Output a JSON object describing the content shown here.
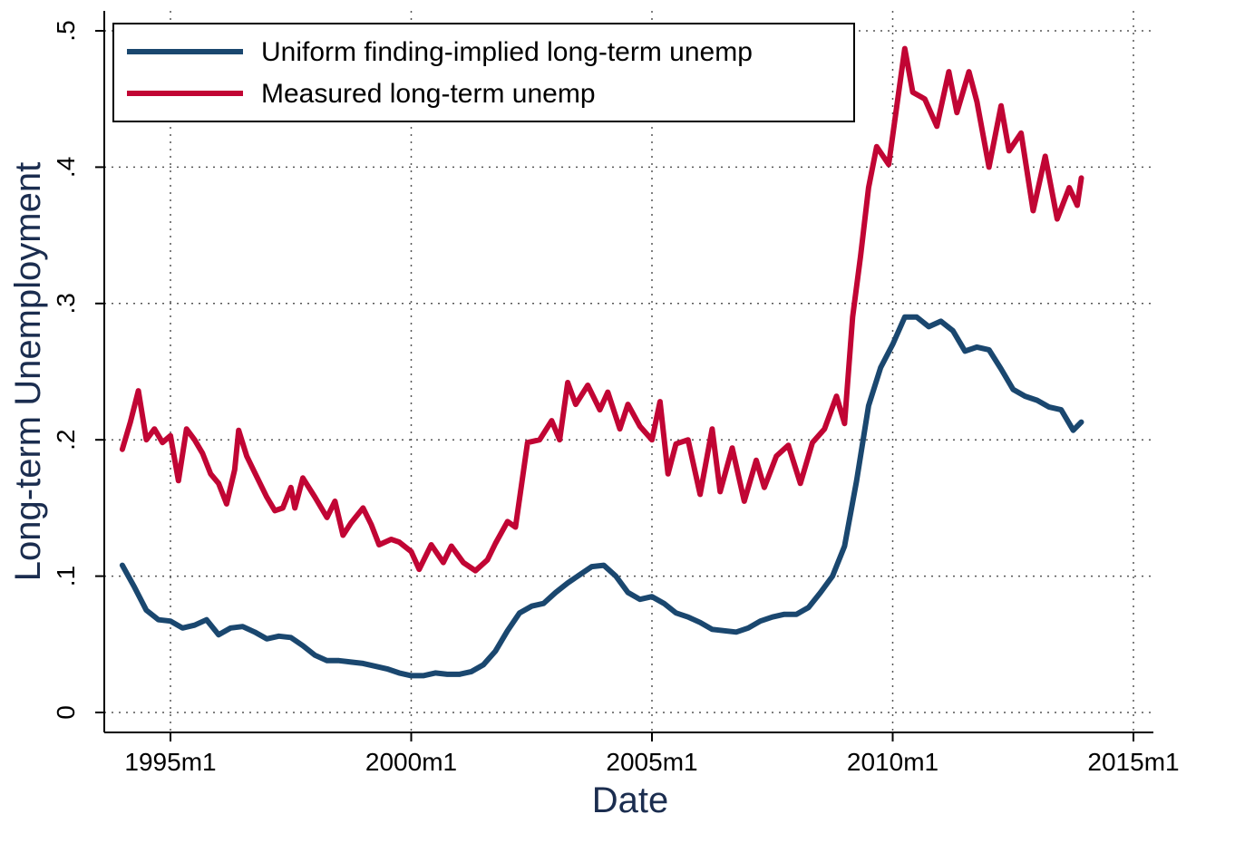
{
  "chart_data": {
    "type": "line",
    "title": "",
    "xlabel": "Date",
    "ylabel": "Long-term Unemployment",
    "x_ticks": [
      "1995m1",
      "2000m1",
      "2005m1",
      "2010m1",
      "2015m1"
    ],
    "y_ticks": [
      "0",
      ".1",
      ".2",
      ".3",
      ".4",
      ".5"
    ],
    "xlim": [
      "1994m1",
      "2015m1"
    ],
    "ylim": [
      0,
      0.5
    ],
    "grid": "dotted, both axes",
    "legend_position": "top-left",
    "colors": {
      "uniform": "#1a476f",
      "measured": "#c10534"
    },
    "series": [
      {
        "name": "Uniform finding-implied long-term unemp",
        "color": "#1a476f",
        "points": [
          [
            "1994m1",
            0.108
          ],
          [
            "1994m4",
            0.092
          ],
          [
            "1994m7",
            0.075
          ],
          [
            "1994m10",
            0.068
          ],
          [
            "1995m1",
            0.067
          ],
          [
            "1995m4",
            0.062
          ],
          [
            "1995m7",
            0.064
          ],
          [
            "1995m10",
            0.068
          ],
          [
            "1996m1",
            0.057
          ],
          [
            "1996m4",
            0.062
          ],
          [
            "1996m7",
            0.063
          ],
          [
            "1996m10",
            0.059
          ],
          [
            "1997m1",
            0.054
          ],
          [
            "1997m4",
            0.056
          ],
          [
            "1997m7",
            0.055
          ],
          [
            "1997m10",
            0.049
          ],
          [
            "1998m1",
            0.042
          ],
          [
            "1998m4",
            0.038
          ],
          [
            "1998m7",
            0.038
          ],
          [
            "1998m10",
            0.037
          ],
          [
            "1999m1",
            0.036
          ],
          [
            "1999m4",
            0.034
          ],
          [
            "1999m7",
            0.032
          ],
          [
            "1999m10",
            0.029
          ],
          [
            "2000m1",
            0.027
          ],
          [
            "2000m4",
            0.027
          ],
          [
            "2000m7",
            0.029
          ],
          [
            "2000m10",
            0.028
          ],
          [
            "2001m1",
            0.028
          ],
          [
            "2001m4",
            0.03
          ],
          [
            "2001m7",
            0.035
          ],
          [
            "2001m10",
            0.045
          ],
          [
            "2002m1",
            0.06
          ],
          [
            "2002m4",
            0.073
          ],
          [
            "2002m7",
            0.078
          ],
          [
            "2002m10",
            0.08
          ],
          [
            "2003m1",
            0.088
          ],
          [
            "2003m4",
            0.095
          ],
          [
            "2003m7",
            0.101
          ],
          [
            "2003m10",
            0.107
          ],
          [
            "2004m1",
            0.108
          ],
          [
            "2004m4",
            0.1
          ],
          [
            "2004m7",
            0.088
          ],
          [
            "2004m10",
            0.083
          ],
          [
            "2005m1",
            0.085
          ],
          [
            "2005m4",
            0.08
          ],
          [
            "2005m7",
            0.073
          ],
          [
            "2005m10",
            0.07
          ],
          [
            "2006m1",
            0.066
          ],
          [
            "2006m4",
            0.061
          ],
          [
            "2006m7",
            0.06
          ],
          [
            "2006m10",
            0.059
          ],
          [
            "2007m1",
            0.062
          ],
          [
            "2007m4",
            0.067
          ],
          [
            "2007m7",
            0.07
          ],
          [
            "2007m10",
            0.072
          ],
          [
            "2008m1",
            0.072
          ],
          [
            "2008m4",
            0.077
          ],
          [
            "2008m7",
            0.088
          ],
          [
            "2008m10",
            0.1
          ],
          [
            "2009m1",
            0.122
          ],
          [
            "2009m4",
            0.17
          ],
          [
            "2009m7",
            0.225
          ],
          [
            "2009m10",
            0.253
          ],
          [
            "2010m1",
            0.27
          ],
          [
            "2010m4",
            0.29
          ],
          [
            "2010m7",
            0.29
          ],
          [
            "2010m10",
            0.283
          ],
          [
            "2011m1",
            0.287
          ],
          [
            "2011m4",
            0.28
          ],
          [
            "2011m7",
            0.265
          ],
          [
            "2011m10",
            0.268
          ],
          [
            "2012m1",
            0.266
          ],
          [
            "2012m4",
            0.252
          ],
          [
            "2012m7",
            0.237
          ],
          [
            "2012m10",
            0.232
          ],
          [
            "2013m1",
            0.229
          ],
          [
            "2013m4",
            0.224
          ],
          [
            "2013m7",
            0.222
          ],
          [
            "2013m10",
            0.207
          ],
          [
            "2013m12",
            0.213
          ]
        ]
      },
      {
        "name": "Measured long-term unemp",
        "color": "#c10534",
        "points": [
          [
            "1994m1",
            0.193
          ],
          [
            "1994m3",
            0.213
          ],
          [
            "1994m5",
            0.236
          ],
          [
            "1994m7",
            0.2
          ],
          [
            "1994m9",
            0.208
          ],
          [
            "1994m11",
            0.198
          ],
          [
            "1995m1",
            0.203
          ],
          [
            "1995m3",
            0.17
          ],
          [
            "1995m5",
            0.208
          ],
          [
            "1995m7",
            0.2
          ],
          [
            "1995m9",
            0.19
          ],
          [
            "1995m11",
            0.175
          ],
          [
            "1996m1",
            0.168
          ],
          [
            "1996m3",
            0.153
          ],
          [
            "1996m5",
            0.178
          ],
          [
            "1996m6",
            0.207
          ],
          [
            "1996m8",
            0.188
          ],
          [
            "1996m10",
            0.176
          ],
          [
            "1997m1",
            0.158
          ],
          [
            "1997m3",
            0.148
          ],
          [
            "1997m5",
            0.15
          ],
          [
            "1997m7",
            0.165
          ],
          [
            "1997m8",
            0.15
          ],
          [
            "1997m10",
            0.172
          ],
          [
            "1998m1",
            0.158
          ],
          [
            "1998m4",
            0.143
          ],
          [
            "1998m6",
            0.155
          ],
          [
            "1998m8",
            0.13
          ],
          [
            "1998m10",
            0.139
          ],
          [
            "1999m1",
            0.15
          ],
          [
            "1999m3",
            0.138
          ],
          [
            "1999m5",
            0.123
          ],
          [
            "1999m8",
            0.127
          ],
          [
            "1999m10",
            0.125
          ],
          [
            "2000m1",
            0.118
          ],
          [
            "2000m3",
            0.105
          ],
          [
            "2000m6",
            0.123
          ],
          [
            "2000m9",
            0.11
          ],
          [
            "2000m11",
            0.122
          ],
          [
            "2001m2",
            0.11
          ],
          [
            "2001m5",
            0.104
          ],
          [
            "2001m8",
            0.112
          ],
          [
            "2001m10",
            0.124
          ],
          [
            "2002m1",
            0.14
          ],
          [
            "2002m3",
            0.136
          ],
          [
            "2002m6",
            0.198
          ],
          [
            "2002m9",
            0.2
          ],
          [
            "2002m12",
            0.214
          ],
          [
            "2003m2",
            0.2
          ],
          [
            "2003m4",
            0.242
          ],
          [
            "2003m6",
            0.226
          ],
          [
            "2003m9",
            0.24
          ],
          [
            "2003m12",
            0.222
          ],
          [
            "2004m2",
            0.235
          ],
          [
            "2004m5",
            0.208
          ],
          [
            "2004m7",
            0.226
          ],
          [
            "2004m10",
            0.21
          ],
          [
            "2005m1",
            0.2
          ],
          [
            "2005m3",
            0.228
          ],
          [
            "2005m5",
            0.175
          ],
          [
            "2005m7",
            0.197
          ],
          [
            "2005m10",
            0.2
          ],
          [
            "2006m1",
            0.16
          ],
          [
            "2006m4",
            0.208
          ],
          [
            "2006m6",
            0.162
          ],
          [
            "2006m9",
            0.194
          ],
          [
            "2006m12",
            0.155
          ],
          [
            "2007m3",
            0.185
          ],
          [
            "2007m5",
            0.165
          ],
          [
            "2007m8",
            0.188
          ],
          [
            "2007m11",
            0.196
          ],
          [
            "2008m2",
            0.168
          ],
          [
            "2008m5",
            0.198
          ],
          [
            "2008m8",
            0.208
          ],
          [
            "2008m11",
            0.232
          ],
          [
            "2009m1",
            0.212
          ],
          [
            "2009m3",
            0.29
          ],
          [
            "2009m5",
            0.335
          ],
          [
            "2009m7",
            0.385
          ],
          [
            "2009m9",
            0.415
          ],
          [
            "2009m12",
            0.402
          ],
          [
            "2010m4",
            0.487
          ],
          [
            "2010m6",
            0.455
          ],
          [
            "2010m9",
            0.45
          ],
          [
            "2010m12",
            0.43
          ],
          [
            "2011m3",
            0.47
          ],
          [
            "2011m5",
            0.44
          ],
          [
            "2011m8",
            0.47
          ],
          [
            "2011m10",
            0.448
          ],
          [
            "2012m1",
            0.4
          ],
          [
            "2012m4",
            0.445
          ],
          [
            "2012m6",
            0.412
          ],
          [
            "2012m9",
            0.425
          ],
          [
            "2012m12",
            0.368
          ],
          [
            "2013m3",
            0.408
          ],
          [
            "2013m6",
            0.362
          ],
          [
            "2013m9",
            0.385
          ],
          [
            "2013m11",
            0.372
          ],
          [
            "2013m12",
            0.392
          ]
        ]
      }
    ]
  }
}
